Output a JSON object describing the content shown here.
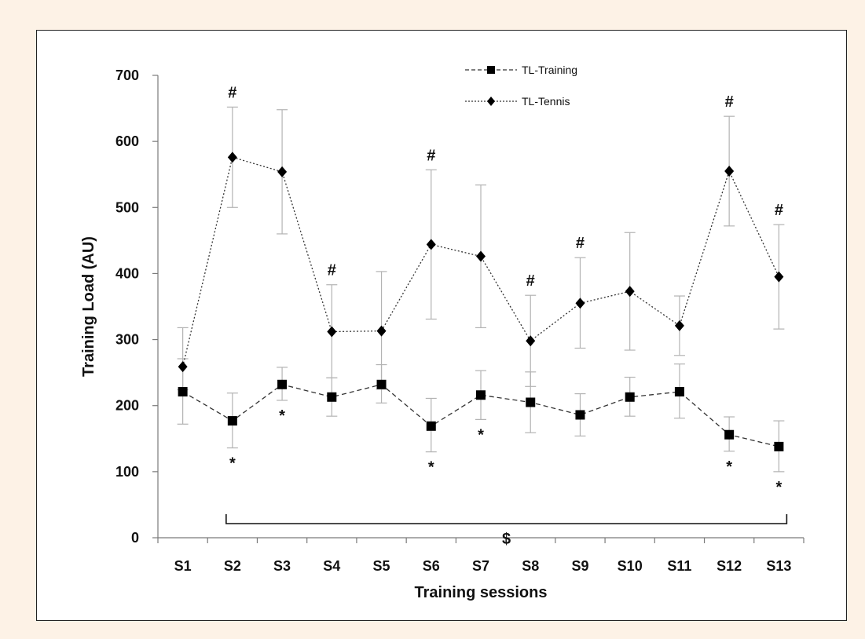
{
  "chart_data": {
    "type": "line",
    "title": "",
    "xlabel": "Training sessions",
    "ylabel": "Training Load (AU)",
    "ylim": [
      0,
      700
    ],
    "yticks": [
      0,
      100,
      200,
      300,
      400,
      500,
      600,
      700
    ],
    "categories": [
      "S1",
      "S2",
      "S3",
      "S4",
      "S5",
      "S6",
      "S7",
      "S8",
      "S9",
      "S10",
      "S11",
      "S12",
      "S13"
    ],
    "series": [
      {
        "name": "TL-Training",
        "marker": "square",
        "line_style": "dashed",
        "values": [
          221,
          177,
          232,
          213,
          232,
          169,
          216,
          205,
          186,
          213,
          221,
          156,
          138
        ],
        "err_upper": [
          271,
          219,
          258,
          242,
          262,
          211,
          253,
          251,
          218,
          243,
          263,
          183,
          177
        ],
        "err_lower": [
          172,
          136,
          208,
          184,
          204,
          130,
          179,
          159,
          154,
          184,
          181,
          131,
          100
        ]
      },
      {
        "name": "TL-Tennis",
        "marker": "diamond",
        "line_style": "dotted",
        "values": [
          259,
          576,
          554,
          312,
          313,
          444,
          426,
          298,
          355,
          373,
          321,
          555,
          395
        ],
        "err_upper": [
          318,
          652,
          648,
          383,
          403,
          557,
          534,
          367,
          424,
          462,
          366,
          638,
          474
        ],
        "err_lower": [
          224,
          500,
          460,
          242,
          225,
          331,
          318,
          229,
          287,
          284,
          276,
          472,
          316
        ]
      }
    ],
    "annotations": {
      "hash_symbol": "#",
      "hash_sessions": [
        "S2",
        "S4",
        "S6",
        "S8",
        "S9",
        "S12",
        "S13"
      ],
      "star_symbol": "*",
      "star_sessions": [
        "S2",
        "S3",
        "S6",
        "S7",
        "S12",
        "S13"
      ],
      "bracket_label": "$",
      "bracket_from": "S2",
      "bracket_to": "S13"
    },
    "legend": {
      "position": "top-center"
    },
    "grid": false,
    "colors": {
      "line": "#333333",
      "marker": "#000000",
      "error_bar": "#b3b3b3",
      "frame_background": "#fdf2e6"
    }
  }
}
